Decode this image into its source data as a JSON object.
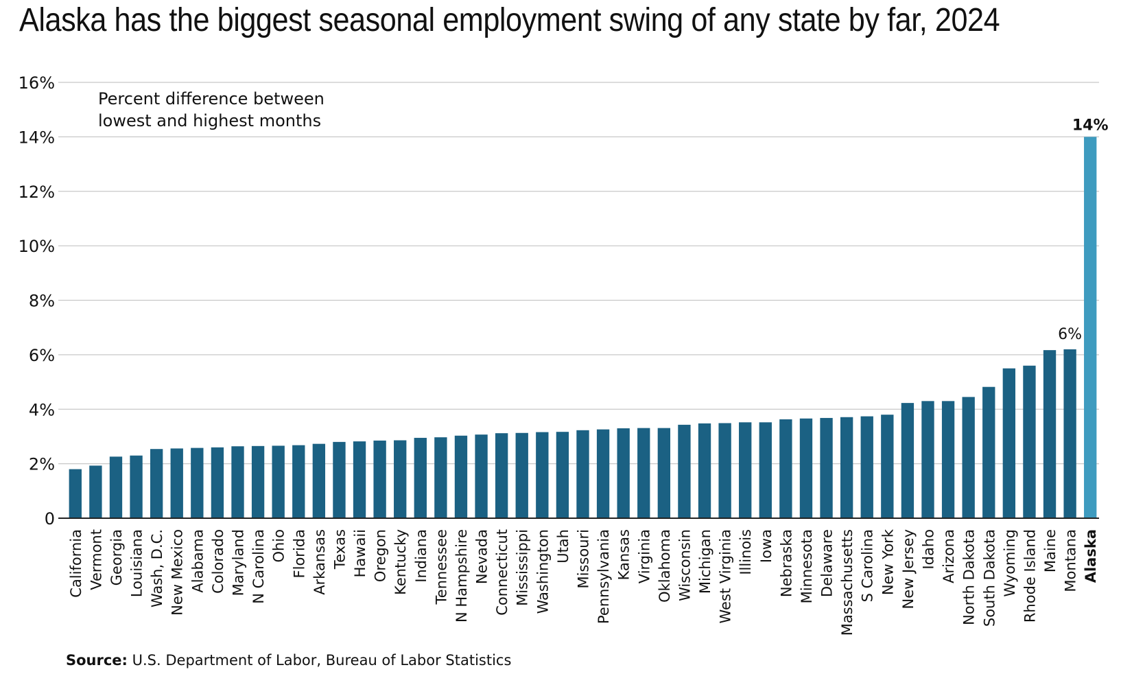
{
  "title": "Alaska has the biggest seasonal employment swing of any state by far, 2024",
  "source_label": "Source:",
  "source_text": "U.S. Department of Labor, Bureau of Labor Statistics",
  "colors": {
    "bar": "#1b6183",
    "highlight": "#3e9bbf",
    "grid": "#c8c8c8",
    "axis": "#222222"
  },
  "chart_data": {
    "type": "bar",
    "title": "Alaska has the biggest seasonal employment swing of any state by far, 2024",
    "annotation": [
      "Percent difference between",
      "lowest and highest months"
    ],
    "xlabel": "",
    "ylabel": "",
    "ylim": [
      0,
      16
    ],
    "yticks": [
      0,
      2,
      4,
      6,
      8,
      10,
      12,
      14,
      16
    ],
    "ytick_labels": [
      "0",
      "2%",
      "4%",
      "6%",
      "8%",
      "10%",
      "12%",
      "14%",
      "16%"
    ],
    "grid": true,
    "categories": [
      "California",
      "Vermont",
      "Georgia",
      "Louisiana",
      "Wash, D.C.",
      "New Mexico",
      "Alabama",
      "Colorado",
      "Maryland",
      "N Carolina",
      "Ohio",
      "Florida",
      "Arkansas",
      "Texas",
      "Hawaii",
      "Oregon",
      "Kentucky",
      "Indiana",
      "Tennessee",
      "N Hampshire",
      "Nevada",
      "Connecticut",
      "Mississippi",
      "Washington",
      "Utah",
      "Missouri",
      "Pennsylvania",
      "Kansas",
      "Virginia",
      "Oklahoma",
      "Wisconsin",
      "Michigan",
      "West Virginia",
      "Illinois",
      "Iowa",
      "Nebraska",
      "Minnesota",
      "Delaware",
      "Massachusetts",
      "S Carolina",
      "New York",
      "New Jersey",
      "Idaho",
      "Arizona",
      "North Dakota",
      "South Dakota",
      "Wyoming",
      "Rhode Island",
      "Maine",
      "Montana",
      "Alaska"
    ],
    "values": [
      1.8,
      1.93,
      2.26,
      2.3,
      2.54,
      2.56,
      2.58,
      2.6,
      2.64,
      2.65,
      2.66,
      2.68,
      2.73,
      2.8,
      2.82,
      2.85,
      2.86,
      2.95,
      2.97,
      3.03,
      3.07,
      3.12,
      3.13,
      3.16,
      3.17,
      3.23,
      3.26,
      3.3,
      3.31,
      3.31,
      3.43,
      3.48,
      3.49,
      3.52,
      3.52,
      3.63,
      3.66,
      3.68,
      3.71,
      3.74,
      3.8,
      4.23,
      4.3,
      4.3,
      4.45,
      4.82,
      5.5,
      5.6,
      6.17,
      6.2,
      14.0
    ],
    "highlight": "Alaska",
    "data_labels": [
      {
        "category": "Montana",
        "text": "6%"
      },
      {
        "category": "Alaska",
        "text": "14%"
      }
    ]
  }
}
